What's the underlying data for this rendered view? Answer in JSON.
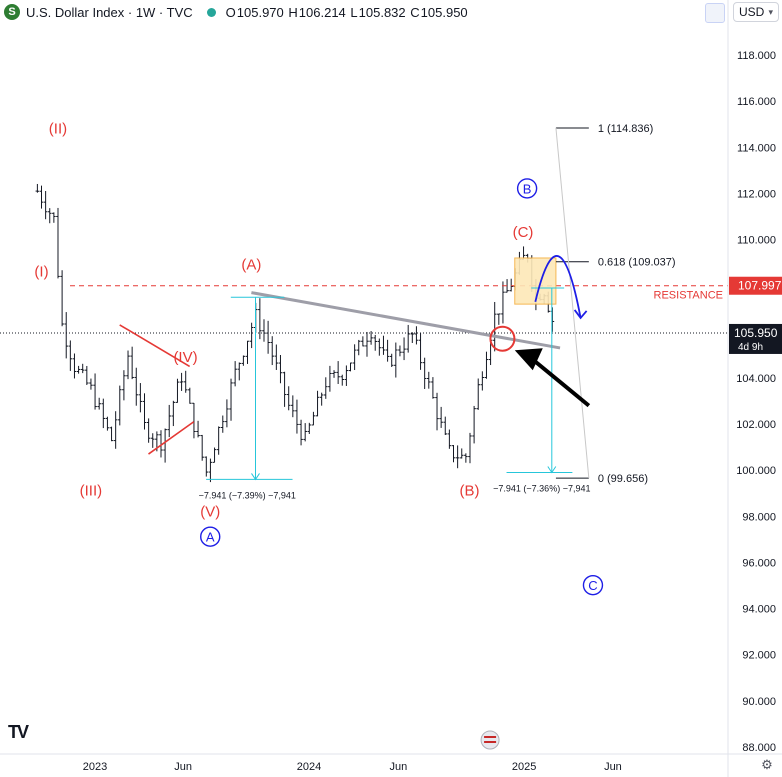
{
  "header": {
    "logo_letter": "S",
    "title": "U.S. Dollar Index · 1W · TVC",
    "ohlc": {
      "o_label": "O",
      "o": "105.970",
      "h_label": "H",
      "h": "106.214",
      "l_label": "L",
      "l": "105.832",
      "c_label": "C",
      "c": "105.950"
    }
  },
  "currency_button": {
    "label": "USD",
    "chevron": "chevron-down-icon"
  },
  "settings_icon": "gear-icon",
  "colors": {
    "wave_red": "#e53935",
    "wave_blue": "#1e1ee6",
    "trendline": "#9e9ea8",
    "measure": "#26c6da",
    "resistance": "#e53935",
    "box_fill": "#fde8b8",
    "box_border": "#f5b041",
    "price_tag": "#131722",
    "candle": "#131722"
  },
  "chart_data": {
    "type": "candlestick",
    "title": "U.S. Dollar Index · 1W · TVC",
    "y_axis": {
      "min": 88,
      "max": 119.5,
      "ticks": [
        88,
        90,
        92,
        94,
        96,
        98,
        100,
        102,
        104,
        106,
        108,
        110,
        112,
        114,
        116,
        118
      ],
      "tick_labels": [
        "88.000",
        "90.000",
        "92.000",
        "94.000",
        "96.000",
        "98.000",
        "100.000",
        "102.000",
        "104.000",
        "106.000",
        "108.000",
        "110.000",
        "112.000",
        "114.000",
        "116.000",
        "118.000"
      ]
    },
    "x_axis": {
      "ticks": [
        "2023",
        "Jun",
        "2024",
        "Jun",
        "2025",
        "Jun"
      ]
    },
    "series": {
      "close_points": [
        [
          "2022-09-26",
          112.1
        ],
        [
          "2022-10-24",
          110.9
        ],
        [
          "2022-11-07",
          106.3
        ],
        [
          "2022-11-28",
          104.5
        ],
        [
          "2022-12-26",
          103.5
        ],
        [
          "2023-01-30",
          101.3
        ],
        [
          "2023-02-27",
          105.0
        ],
        [
          "2023-03-27",
          101.9
        ],
        [
          "2023-04-24",
          101.2
        ],
        [
          "2023-05-29",
          104.1
        ],
        [
          "2023-07-10",
          99.9
        ],
        [
          "2023-07-17",
          100.5
        ],
        [
          "2023-08-28",
          104.2
        ],
        [
          "2023-10-02",
          106.7
        ],
        [
          "2023-10-23",
          105.6
        ],
        [
          "2023-11-27",
          102.8
        ],
        [
          "2023-12-25",
          101.3
        ],
        [
          "2024-01-29",
          103.8
        ],
        [
          "2024-02-26",
          104.2
        ],
        [
          "2024-04-15",
          106.1
        ],
        [
          "2024-05-13",
          104.6
        ],
        [
          "2024-06-24",
          105.9
        ],
        [
          "2024-07-15",
          104.3
        ],
        [
          "2024-08-26",
          100.8
        ],
        [
          "2024-09-23",
          100.5
        ],
        [
          "2024-10-14",
          103.5
        ],
        [
          "2024-11-11",
          106.6
        ],
        [
          "2025-01-06",
          109.5
        ],
        [
          "2025-01-20",
          107.4
        ],
        [
          "2025-02-03",
          107.9
        ],
        [
          "2025-02-17",
          106.6
        ],
        [
          "2025-02-24",
          105.95
        ]
      ]
    },
    "last_price": "105.950",
    "last_price_countdown": "4d 9h",
    "resistance": {
      "value": 107.997,
      "label": "RESISTANCE",
      "price_label": "107.997"
    },
    "fib_levels": [
      {
        "label": "1 (114.836)",
        "value": 114.836
      },
      {
        "label": "0.618 (109.037)",
        "value": 109.037
      },
      {
        "label": "0 (99.656)",
        "value": 99.656
      }
    ],
    "measurements": [
      {
        "label": "−7.941 (−7.39%) −7,941",
        "from": 107.5,
        "to": 99.6
      },
      {
        "label": "−7.941 (−7.36%) −7,941",
        "from": 107.9,
        "to": 99.9
      }
    ],
    "wave_labels": {
      "red": [
        "(II)",
        "(I)",
        "(III)",
        "(IV)",
        "(V)",
        "(A)",
        "(B)",
        "(C)"
      ],
      "blue_circled": [
        "A",
        "B",
        "C"
      ]
    }
  }
}
